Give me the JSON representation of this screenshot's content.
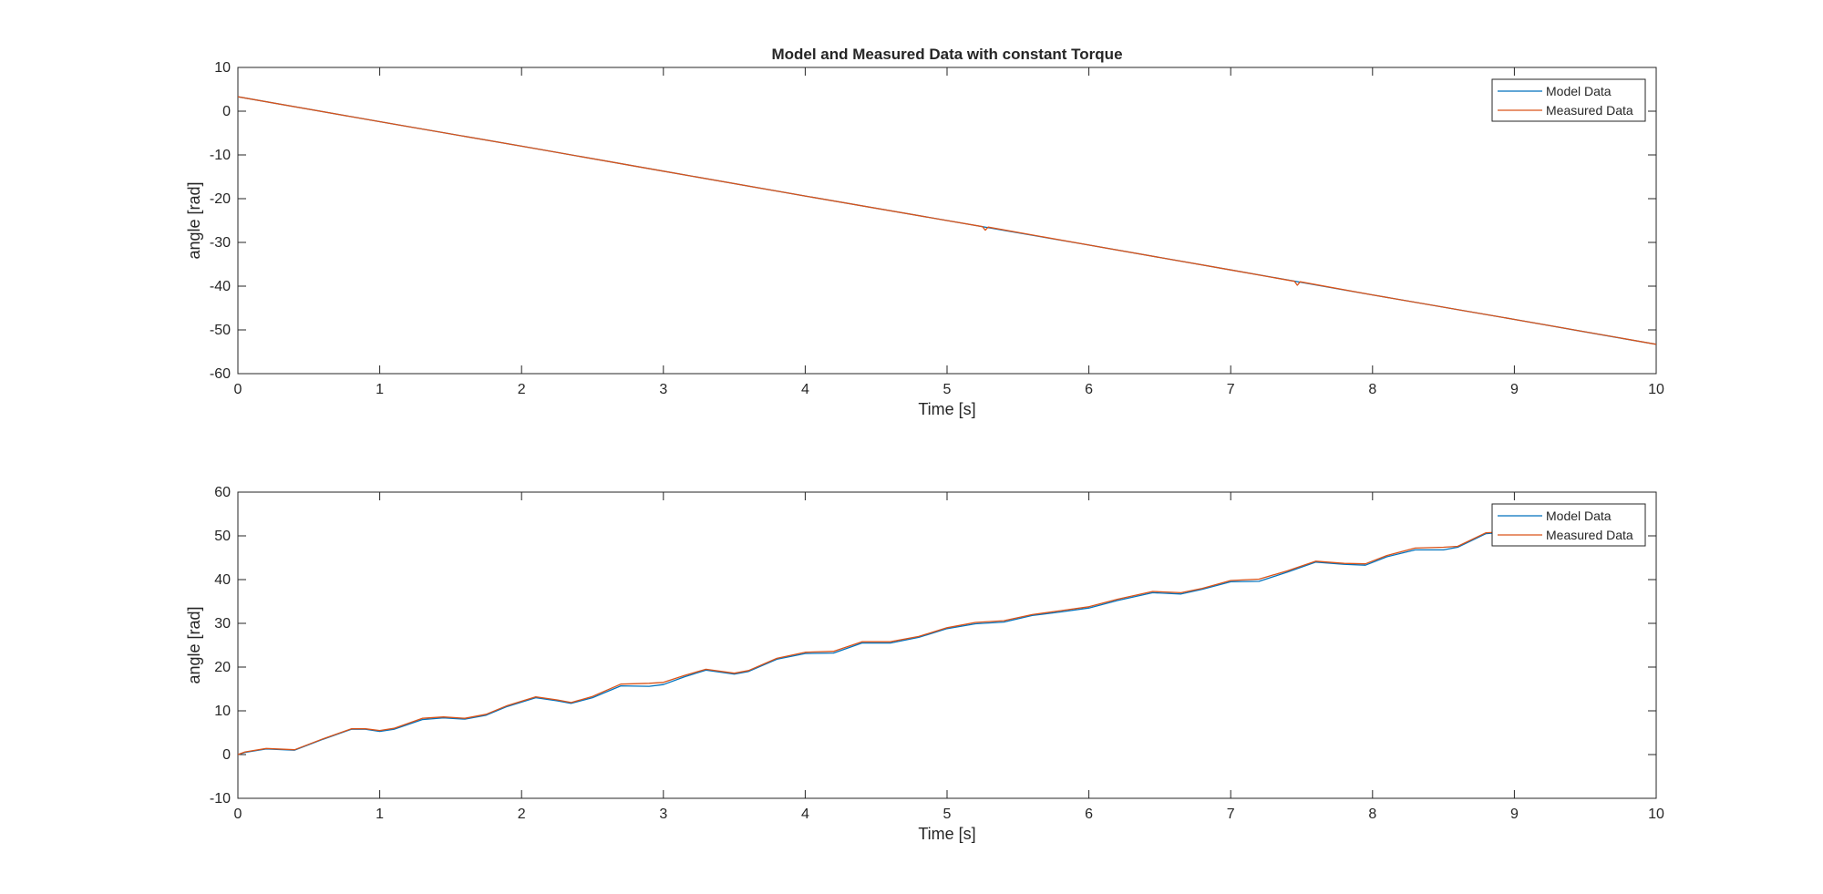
{
  "figure": {
    "background": "#ffffff",
    "axis_color": "#262626",
    "series_colors": {
      "model": "#0072bd",
      "measured": "#d95319"
    }
  },
  "chart_data": [
    {
      "type": "line",
      "title": "Model and Measured Data with constant Torque",
      "xlabel": "Time [s]",
      "ylabel": "angle [rad]",
      "xlim": [
        0,
        10
      ],
      "ylim": [
        -60,
        10
      ],
      "xticks": [
        0,
        1,
        2,
        3,
        4,
        5,
        6,
        7,
        8,
        9,
        10
      ],
      "yticks": [
        -60,
        -50,
        -40,
        -30,
        -20,
        -10,
        0,
        10
      ],
      "grid": false,
      "legend_position": "top-right",
      "series": [
        {
          "name": "Model Data",
          "x": [
            0,
            1,
            2,
            3,
            4,
            5,
            6,
            7,
            8,
            9,
            9.7,
            10
          ],
          "y": [
            3.3,
            -2.4,
            -8.0,
            -13.7,
            -19.4,
            -25.0,
            -30.6,
            -36.3,
            -42.0,
            -47.6,
            -51.6,
            -53.3
          ]
        },
        {
          "name": "Measured Data",
          "x": [
            0,
            1,
            2,
            3,
            4,
            5,
            5.25,
            5.27,
            5.29,
            6,
            7,
            7.45,
            7.47,
            7.49,
            8,
            9,
            10
          ],
          "y": [
            3.3,
            -2.4,
            -8.0,
            -13.7,
            -19.4,
            -25.0,
            -26.4,
            -27.2,
            -26.5,
            -30.6,
            -36.3,
            -38.9,
            -39.8,
            -39.0,
            -42.0,
            -47.6,
            -53.3
          ]
        }
      ]
    },
    {
      "type": "line",
      "title": "",
      "xlabel": "Time [s]",
      "ylabel": "angle [rad]",
      "xlim": [
        0,
        10
      ],
      "ylim": [
        -10,
        60
      ],
      "xticks": [
        0,
        1,
        2,
        3,
        4,
        5,
        6,
        7,
        8,
        9,
        10
      ],
      "yticks": [
        -10,
        0,
        10,
        20,
        30,
        40,
        50,
        60
      ],
      "grid": false,
      "legend_position": "top-right",
      "series": [
        {
          "name": "Model Data",
          "x": [
            0,
            0.05,
            0.2,
            0.4,
            0.6,
            0.8,
            0.9,
            1.0,
            1.1,
            1.3,
            1.45,
            1.6,
            1.75,
            1.9,
            2.1,
            2.25,
            2.35,
            2.5,
            2.7,
            2.9,
            3.0,
            3.15,
            3.3,
            3.5,
            3.6,
            3.8,
            4.0,
            4.2,
            4.4,
            4.6,
            4.8,
            5.0,
            5.2,
            5.4,
            5.6,
            5.8,
            6.0,
            6.2,
            6.45,
            6.65,
            6.8,
            7.0,
            7.2,
            7.4,
            7.6,
            7.8,
            7.95,
            8.1,
            8.3,
            8.5,
            8.6,
            8.8,
            9.0
          ],
          "y": [
            0,
            0.5,
            1.3,
            1.0,
            3.5,
            5.8,
            5.8,
            5.3,
            5.8,
            8.0,
            8.4,
            8.1,
            9.0,
            11.0,
            13.0,
            12.3,
            11.7,
            13.0,
            15.7,
            15.6,
            16.0,
            17.8,
            19.3,
            18.4,
            19.0,
            21.8,
            23.1,
            23.2,
            25.5,
            25.5,
            26.8,
            28.8,
            29.9,
            30.3,
            31.8,
            32.6,
            33.5,
            35.2,
            37.0,
            36.7,
            37.8,
            39.5,
            39.6,
            41.7,
            44.0,
            43.5,
            43.3,
            45.2,
            46.8,
            46.8,
            47.4,
            50.5,
            51.0
          ]
        },
        {
          "name": "Measured Data",
          "x": [
            0,
            0.05,
            0.2,
            0.4,
            0.6,
            0.8,
            0.9,
            1.0,
            1.1,
            1.3,
            1.45,
            1.6,
            1.75,
            1.9,
            2.1,
            2.25,
            2.35,
            2.5,
            2.7,
            2.9,
            3.0,
            3.15,
            3.3,
            3.5,
            3.6,
            3.8,
            4.0,
            4.2,
            4.4,
            4.6,
            4.8,
            5.0,
            5.2,
            5.4,
            5.6,
            5.8,
            6.0,
            6.2,
            6.45,
            6.65,
            6.8,
            7.0,
            7.2,
            7.4,
            7.6,
            7.8,
            7.95,
            8.1,
            8.3,
            8.5,
            8.6,
            8.8,
            9.0
          ],
          "y": [
            0,
            0.6,
            1.4,
            1.1,
            3.6,
            5.9,
            5.9,
            5.5,
            6.0,
            8.3,
            8.6,
            8.3,
            9.2,
            11.2,
            13.2,
            12.5,
            11.9,
            13.3,
            16.1,
            16.3,
            16.5,
            18.1,
            19.5,
            18.6,
            19.2,
            22.0,
            23.4,
            23.6,
            25.8,
            25.8,
            27.0,
            29.0,
            30.2,
            30.6,
            32.0,
            32.9,
            33.8,
            35.5,
            37.3,
            37.0,
            38.0,
            39.8,
            40.1,
            42.0,
            44.2,
            43.7,
            43.6,
            45.5,
            47.2,
            47.4,
            47.6,
            50.7,
            51.0
          ]
        }
      ]
    }
  ]
}
